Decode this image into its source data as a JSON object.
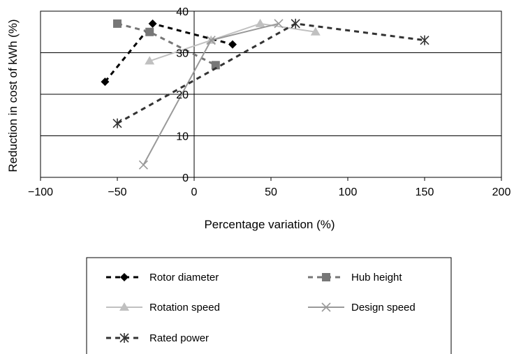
{
  "chart_data": {
    "type": "line",
    "xlabel": "Percentage variation (%)",
    "ylabel": "Reduction in cost of kWh (%)",
    "xlim": [
      -100,
      200
    ],
    "ylim": [
      0,
      40
    ],
    "x_ticks": [
      -100,
      -50,
      0,
      50,
      100,
      150,
      200
    ],
    "x_tick_labels": [
      "−100",
      "−50",
      "0",
      "50",
      "100",
      "150",
      "200"
    ],
    "y_ticks": [
      0,
      10,
      20,
      30,
      40
    ],
    "y_tick_labels": [
      "0",
      "10",
      "20",
      "30",
      "40"
    ],
    "grid": "horizontal",
    "legend_position": "bottom",
    "series": [
      {
        "name": "Rotor diameter",
        "color": "#000000",
        "dash": "dashed",
        "marker": "diamond",
        "points": [
          [
            -58,
            23
          ],
          [
            -27,
            37
          ],
          [
            25,
            32
          ]
        ]
      },
      {
        "name": "Hub height",
        "color": "#777777",
        "dash": "dashed",
        "marker": "square",
        "points": [
          [
            -50,
            37
          ],
          [
            -29,
            35
          ],
          [
            14,
            27
          ]
        ]
      },
      {
        "name": "Rotation speed",
        "color": "#c0c0c0",
        "dash": "solid",
        "marker": "triangle",
        "points": [
          [
            -29,
            28
          ],
          [
            11,
            33
          ],
          [
            43,
            37
          ],
          [
            79,
            35
          ]
        ]
      },
      {
        "name": "Design speed",
        "color": "#999999",
        "dash": "solid",
        "marker": "x",
        "points": [
          [
            -33,
            3
          ],
          [
            11,
            33
          ],
          [
            55,
            37
          ]
        ]
      },
      {
        "name": "Rated power",
        "color": "#333333",
        "dash": "dashed",
        "marker": "star",
        "points": [
          [
            -50,
            13
          ],
          [
            66,
            37
          ],
          [
            150,
            33
          ]
        ]
      }
    ]
  }
}
